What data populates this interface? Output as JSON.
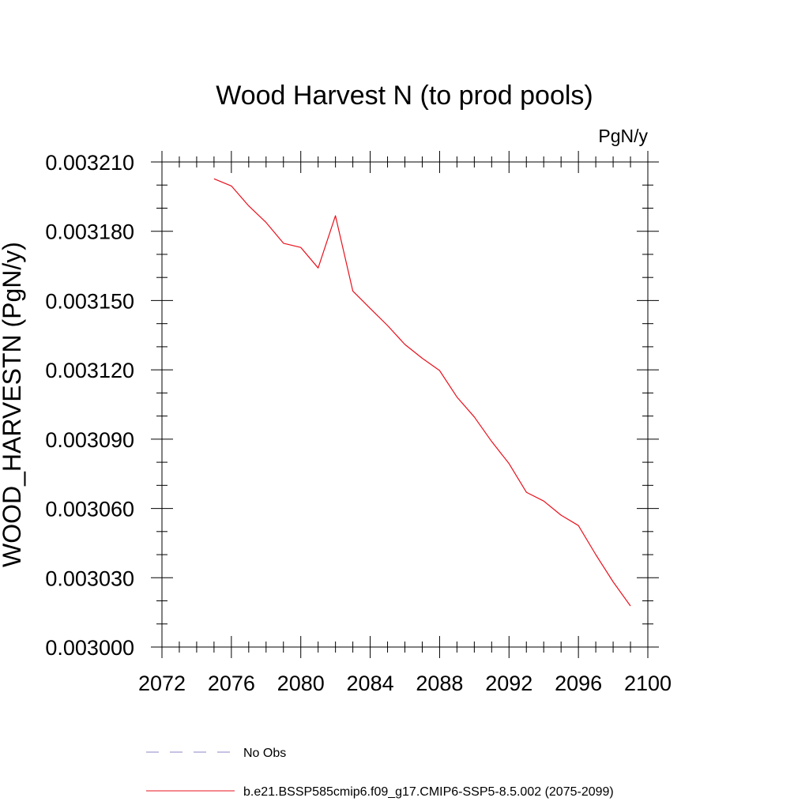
{
  "chart_data": {
    "type": "line",
    "title": "Wood Harvest N (to prod pools)",
    "units_label": "PgN/y",
    "xlabel": "",
    "ylabel": "WOOD_HARVESTN  (PgN/y)",
    "xlim": [
      2072,
      2100
    ],
    "ylim": [
      0.003,
      0.00321
    ],
    "x_ticks": [
      2072,
      2076,
      2080,
      2084,
      2088,
      2092,
      2096,
      2100
    ],
    "x_tick_labels": [
      "2072",
      "2076",
      "2080",
      "2084",
      "2088",
      "2092",
      "2096",
      "2100"
    ],
    "y_ticks": [
      0.003,
      0.00303,
      0.00306,
      0.00309,
      0.00312,
      0.00315,
      0.00318,
      0.00321
    ],
    "y_tick_labels": [
      "0.003000",
      "0.003030",
      "0.003060",
      "0.003090",
      "0.003120",
      "0.003150",
      "0.003180",
      "0.003210"
    ],
    "grid": false,
    "series": [
      {
        "name": "b.e21.BSSP585cmip6.f09_g17.CMIP6-SSP5-8.5.002 (2075-2099)",
        "color": "#e8101c",
        "style": "solid",
        "x": [
          2075,
          2076,
          2077,
          2078,
          2079,
          2080,
          2081,
          2082,
          2083,
          2084,
          2085,
          2086,
          2087,
          2088,
          2089,
          2090,
          2091,
          2092,
          2093,
          2094,
          2095,
          2096,
          2097,
          2098,
          2099
        ],
        "y": [
          0.0032027,
          0.0031996,
          0.003191,
          0.0031838,
          0.0031748,
          0.003173,
          0.0031641,
          0.0031867,
          0.0031541,
          0.0031466,
          0.0031392,
          0.003131,
          0.003125,
          0.0031197,
          0.0031082,
          0.0030996,
          0.003089,
          0.0030794,
          0.003067,
          0.0030632,
          0.0030571,
          0.0030526,
          0.00304,
          0.0030282,
          0.0030178
        ]
      }
    ],
    "legend": {
      "placement": "bottom",
      "entries": [
        {
          "label": "No Obs",
          "color": "#8c86c8",
          "style": "dashed"
        },
        {
          "label": "b.e21.BSSP585cmip6.f09_g17.CMIP6-SSP5-8.5.002 (2075-2099)",
          "color": "#e8101c",
          "style": "solid"
        }
      ]
    }
  }
}
